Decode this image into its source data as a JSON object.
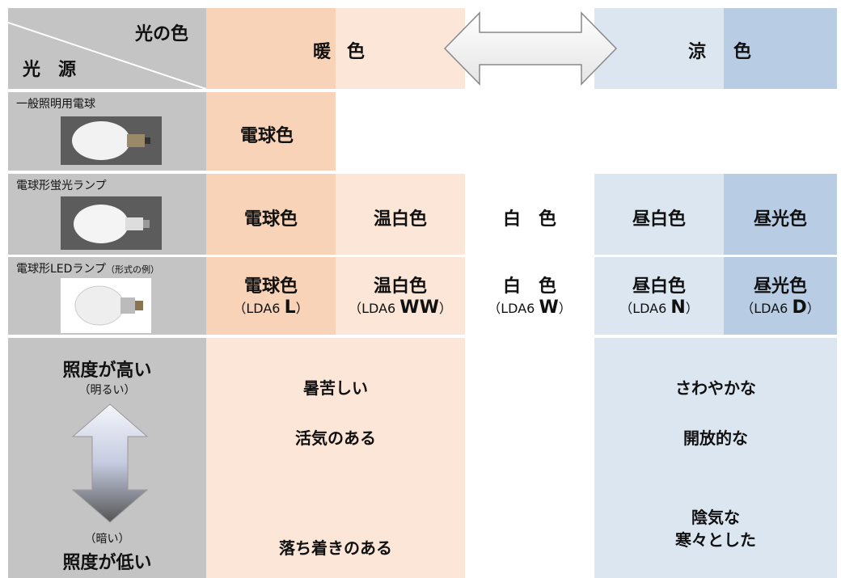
{
  "header": {
    "light_color": "光の色",
    "source": "光　源",
    "warm": [
      "暖",
      "色"
    ],
    "cool": [
      "涼",
      "色"
    ]
  },
  "rows": [
    {
      "label": "一般照明用電球",
      "cells": [
        "電球色"
      ]
    },
    {
      "label": "電球形蛍光ランプ",
      "cells": [
        "電球色",
        "温白色",
        "白　色",
        "昼白色",
        "昼光色"
      ]
    },
    {
      "label": "電球形LEDランプ",
      "note": "（形式の例）",
      "cells": [
        {
          "name": "電球色",
          "model": [
            "（LDA6 ",
            "L",
            "）"
          ]
        },
        {
          "name": "温白色",
          "model": [
            "（LDA6 ",
            "WW",
            "）"
          ]
        },
        {
          "name": "白　色",
          "model": [
            "（LDA6 ",
            "W",
            "）"
          ]
        },
        {
          "name": "昼白色",
          "model": [
            "（LDA6 ",
            "N",
            "）"
          ]
        },
        {
          "name": "昼光色",
          "model": [
            "（LDA6 ",
            "D",
            "）"
          ]
        }
      ]
    }
  ],
  "brightness": {
    "high": "照度が高い",
    "high_note": "（明るい）",
    "low_note": "（暗い）",
    "low": "照度が低い"
  },
  "impressions": {
    "warm": [
      "暑苦しい",
      "活気のある",
      "落ち着きのある"
    ],
    "cool": [
      "さわやかな",
      "開放的な",
      "陰気な",
      "寒々とした"
    ]
  }
}
